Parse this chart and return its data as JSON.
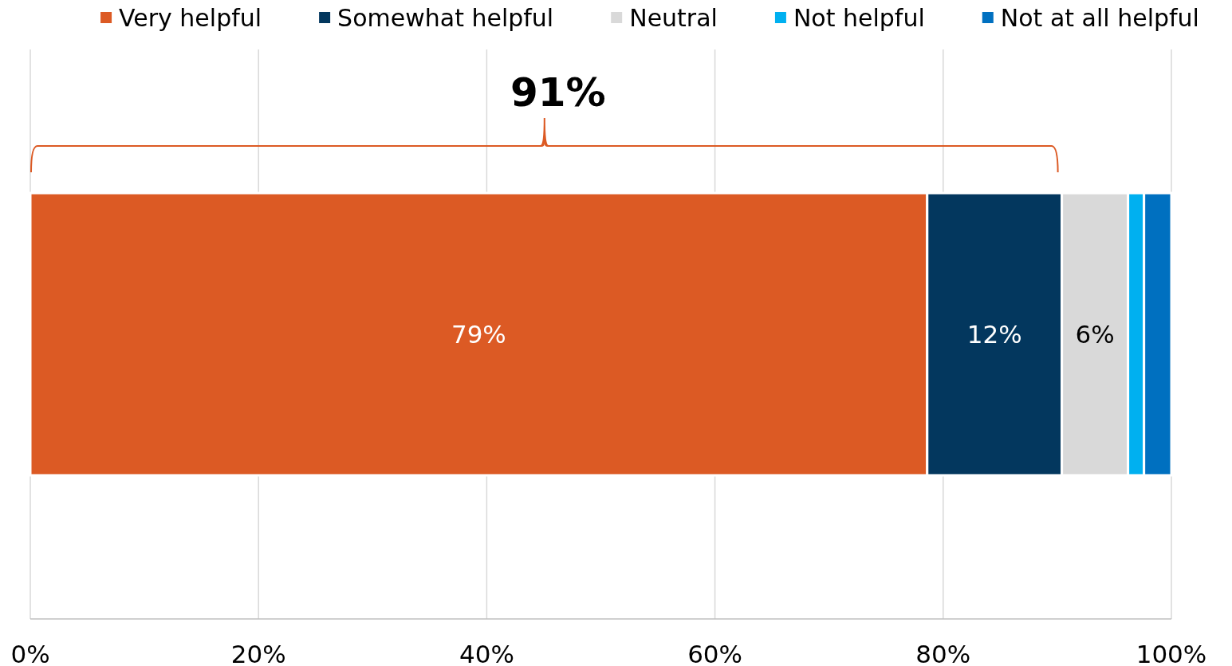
{
  "chart_data": {
    "type": "bar",
    "orientation": "horizontal",
    "stacked": true,
    "categories": [
      null
    ],
    "series": [
      {
        "name": "Very helpful",
        "color": "#dc5a24",
        "values": [
          78.6
        ],
        "value_labels": [
          "79%"
        ]
      },
      {
        "name": "Somewhat helpful",
        "color": "#03375e",
        "values": [
          11.8
        ],
        "value_labels": [
          "12%"
        ]
      },
      {
        "name": "Neutral",
        "color": "#d9d9d9",
        "values": [
          5.8
        ],
        "value_labels": [
          "6%"
        ]
      },
      {
        "name": "Not helpful",
        "color": "#00b0f0",
        "values": [
          1.4
        ],
        "value_labels": [
          null
        ]
      },
      {
        "name": "Not at all helpful",
        "color": "#0070c0",
        "values": [
          2.4
        ],
        "value_labels": [
          null
        ]
      }
    ],
    "xlim": [
      0,
      100
    ],
    "xticks": [
      {
        "value": 0,
        "label": "0%"
      },
      {
        "value": 20,
        "label": "20%"
      },
      {
        "value": 40,
        "label": "40%"
      },
      {
        "value": 60,
        "label": "60%"
      },
      {
        "value": 80,
        "label": "80%"
      },
      {
        "value": 100,
        "label": "100%"
      }
    ],
    "grid": "x",
    "legend": "top",
    "annotations": [
      "91%"
    ]
  }
}
